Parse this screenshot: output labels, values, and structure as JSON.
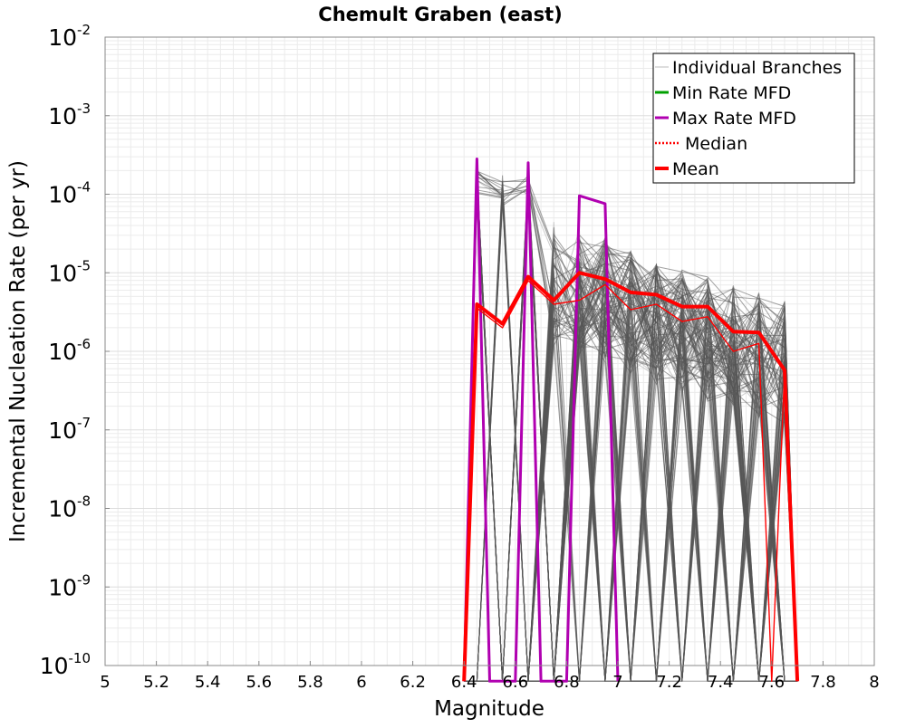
{
  "chart_data": {
    "type": "line",
    "title": "Chemult Graben (east)",
    "xlabel": "Magnitude",
    "ylabel": "Incremental Nucleation Rate (per yr)",
    "xlim": [
      5,
      8
    ],
    "x_ticks": [
      5,
      5.2,
      5.4,
      5.6,
      5.8,
      6,
      6.2,
      6.4,
      6.6,
      6.8,
      7,
      7.2,
      7.4,
      7.6,
      7.8,
      8
    ],
    "x_tick_labels": [
      "5",
      "5.2",
      "5.4",
      "5.6",
      "5.8",
      "6",
      "6.2",
      "6.4",
      "6.6",
      "6.8",
      "7",
      "7.2",
      "7.4",
      "7.6",
      "7.8",
      "8"
    ],
    "y_scale": "log",
    "ylim_exponents": [
      -10,
      -2
    ],
    "y_ticks": [
      {
        "base": "10",
        "exp": "-2"
      },
      {
        "base": "10",
        "exp": "-3"
      },
      {
        "base": "10",
        "exp": "-4"
      },
      {
        "base": "10",
        "exp": "-5"
      },
      {
        "base": "10",
        "exp": "-6"
      },
      {
        "base": "10",
        "exp": "-7"
      },
      {
        "base": "10",
        "exp": "-8"
      },
      {
        "base": "10",
        "exp": "-9"
      },
      {
        "base": "10",
        "exp": "-10"
      }
    ],
    "grid": true,
    "legend_position": "top-right",
    "legend": [
      {
        "label": "Individual Branches",
        "color": "#bbbbbb",
        "style": "thin"
      },
      {
        "label": "Min Rate MFD",
        "color": "#00a000",
        "style": "solid"
      },
      {
        "label": "Max Rate MFD",
        "color": "#b000b0",
        "style": "solid"
      },
      {
        "label": "Median",
        "color": "#ff0000",
        "style": "dotted"
      },
      {
        "label": "Mean",
        "color": "#ff0000",
        "style": "thick"
      }
    ],
    "branch_count_dark": 110,
    "branch_count_light": 28,
    "series": [
      {
        "name": "Max Rate MFD",
        "color": "#b000b0",
        "x": [
          6.4,
          6.45,
          6.5,
          6.55,
          6.6,
          6.65,
          6.7,
          6.75,
          6.8,
          6.85,
          6.95,
          7.0
        ],
        "log10_y": [
          -10.2,
          -3.55,
          -10.2,
          -10.2,
          -10.2,
          -3.6,
          -10.2,
          -10.2,
          -10.2,
          -4.02,
          -4.12,
          -10.2
        ]
      },
      {
        "name": "Mean",
        "color": "#ff0000",
        "x": [
          6.4,
          6.45,
          6.55,
          6.65,
          6.75,
          6.85,
          6.95,
          7.05,
          7.15,
          7.25,
          7.35,
          7.45,
          7.55,
          7.65,
          7.7
        ],
        "log10_y": [
          -10.2,
          -5.4,
          -5.65,
          -5.05,
          -5.35,
          -5.0,
          -5.08,
          -5.25,
          -5.28,
          -5.43,
          -5.43,
          -5.75,
          -5.76,
          -6.24,
          -10.2
        ]
      },
      {
        "name": "Median",
        "color": "#ff0000",
        "x": [
          6.45,
          6.55,
          6.65,
          6.75,
          6.85,
          6.95,
          7.05,
          7.15,
          7.25,
          7.35,
          7.45,
          7.55,
          7.6,
          7.65,
          7.7
        ],
        "log10_y": [
          -5.45,
          -5.7,
          -5.1,
          -5.4,
          -5.35,
          -5.15,
          -5.47,
          -5.4,
          -5.62,
          -5.56,
          -6.0,
          -5.9,
          -10.2,
          -6.24,
          -10.2
        ]
      }
    ]
  }
}
